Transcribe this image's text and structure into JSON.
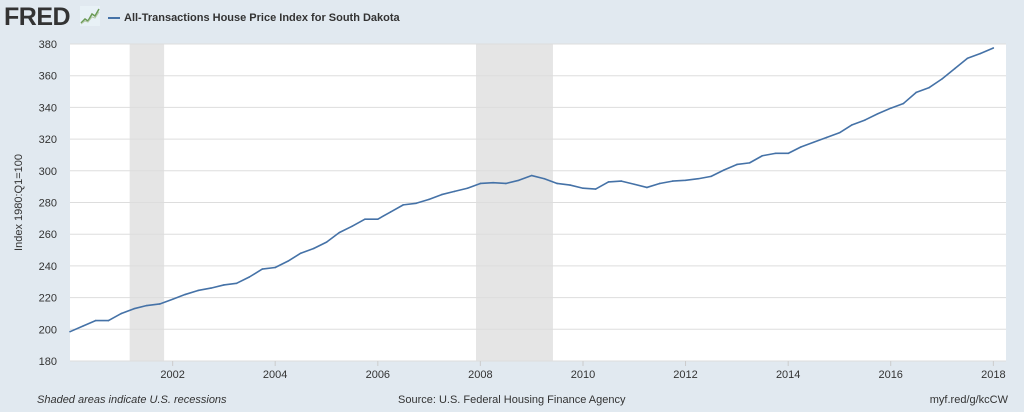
{
  "header": {
    "logo_text": "FRED",
    "logo_icon": "sparkline-icon",
    "series_title": "All-Transactions House Price Index for South Dakota"
  },
  "footer": {
    "recession_note": "Shaded areas indicate U.S. recessions",
    "source": "Source: U.S. Federal Housing Finance Agency",
    "short_url": "myf.red/g/kcCW"
  },
  "colors": {
    "background": "#e1e9f0",
    "plot_area": "#ffffff",
    "series_line": "#4572a7",
    "recession_shade": "#e5e5e5",
    "gridline": "#dddddd",
    "text": "#333333"
  },
  "chart_data": {
    "type": "line",
    "title": "All-Transactions House Price Index for South Dakota",
    "xlabel": "",
    "ylabel": "Index 1980:Q1=100",
    "xlim": [
      "2000-01-01",
      "2018-04-01"
    ],
    "ylim": [
      180,
      380
    ],
    "yticks": [
      180,
      200,
      220,
      240,
      260,
      280,
      300,
      320,
      340,
      360,
      380
    ],
    "xticks": [
      "2002",
      "2004",
      "2006",
      "2008",
      "2010",
      "2012",
      "2014",
      "2016",
      "2018"
    ],
    "grid": "horizontal",
    "legend_position": "top-left",
    "recessions": [
      {
        "start": "2001-03-01",
        "end": "2001-11-01"
      },
      {
        "start": "2007-12-01",
        "end": "2009-06-01"
      }
    ],
    "series": [
      {
        "name": "All-Transactions House Price Index for South Dakota",
        "x": [
          "2000-01-01",
          "2000-04-01",
          "2000-07-01",
          "2000-10-01",
          "2001-01-01",
          "2001-04-01",
          "2001-07-01",
          "2001-10-01",
          "2002-01-01",
          "2002-04-01",
          "2002-07-01",
          "2002-10-01",
          "2003-01-01",
          "2003-04-01",
          "2003-07-01",
          "2003-10-01",
          "2004-01-01",
          "2004-04-01",
          "2004-07-01",
          "2004-10-01",
          "2005-01-01",
          "2005-04-01",
          "2005-07-01",
          "2005-10-01",
          "2006-01-01",
          "2006-04-01",
          "2006-07-01",
          "2006-10-01",
          "2007-01-01",
          "2007-04-01",
          "2007-07-01",
          "2007-10-01",
          "2008-01-01",
          "2008-04-01",
          "2008-07-01",
          "2008-10-01",
          "2009-01-01",
          "2009-04-01",
          "2009-07-01",
          "2009-10-01",
          "2010-01-01",
          "2010-04-01",
          "2010-07-01",
          "2010-10-01",
          "2011-01-01",
          "2011-04-01",
          "2011-07-01",
          "2011-10-01",
          "2012-01-01",
          "2012-04-01",
          "2012-07-01",
          "2012-10-01",
          "2013-01-01",
          "2013-04-01",
          "2013-07-01",
          "2013-10-01",
          "2014-01-01",
          "2014-04-01",
          "2014-07-01",
          "2014-10-01",
          "2015-01-01",
          "2015-04-01",
          "2015-07-01",
          "2015-10-01",
          "2016-01-01",
          "2016-04-01",
          "2016-07-01",
          "2016-10-01",
          "2017-01-01",
          "2017-04-01",
          "2017-07-01",
          "2017-10-01",
          "2018-01-01"
        ],
        "values": [
          198.5,
          202,
          205.5,
          205.5,
          210,
          213,
          215,
          216,
          219,
          222,
          224.5,
          226,
          228,
          229,
          233,
          238,
          239,
          243,
          248,
          251,
          255,
          261,
          265,
          269.5,
          269.5,
          274,
          278.5,
          279.5,
          282,
          285,
          287,
          289,
          292,
          292.5,
          292,
          294,
          297,
          295,
          292,
          291,
          289,
          288.5,
          293,
          293.5,
          291.5,
          289.5,
          292,
          293.5,
          294,
          295,
          296.5,
          300.5,
          304,
          305,
          309.5,
          311,
          311,
          315,
          318,
          321,
          324,
          329,
          332,
          336,
          339.5,
          342.5,
          349.5,
          352.5,
          358,
          364.5,
          371,
          374,
          377.5
        ]
      }
    ]
  }
}
